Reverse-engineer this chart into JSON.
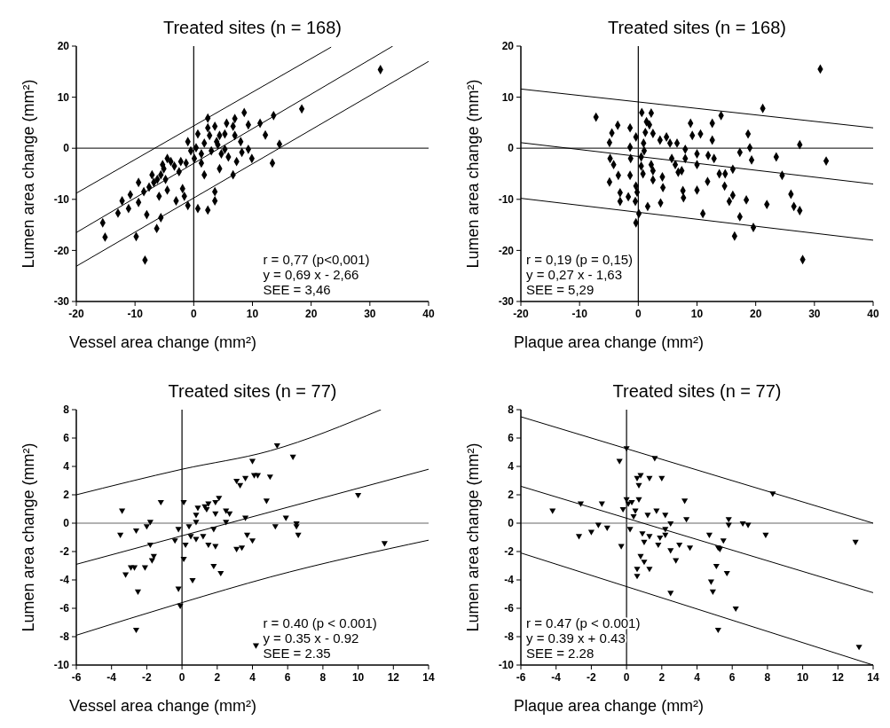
{
  "chart_data": [
    {
      "type": "scatter",
      "title": "Treated sites (n = 168)",
      "xlabel": "Vessel area change (mm²)",
      "ylabel": "Lumen area change (mm²)",
      "xlim": [
        -20,
        40
      ],
      "xticks": [
        -20,
        -10,
        0,
        10,
        20,
        30,
        40
      ],
      "ylim": [
        -30,
        20
      ],
      "yticks": [
        -30,
        -20,
        -10,
        0,
        10,
        20
      ],
      "ref_lines": [
        {
          "axis": "x",
          "value": 0,
          "color": "#000000"
        },
        {
          "axis": "y",
          "value": 0,
          "color": "#333333"
        }
      ],
      "annotations": [
        "r = 0,77 (p<0,001)",
        "y = 0,69 x - 2,66",
        "SEE = 3,46"
      ],
      "series": [
        {
          "color": "#000000",
          "marker": "diamond",
          "x": [
            31.8,
            18.4,
            13.6,
            14.6,
            13.4,
            12.2,
            11.3,
            9.3,
            8.6,
            8.0,
            7.0,
            5.6,
            5.3,
            3.6,
            2.4,
            2.7,
            1.8,
            4.1,
            5.9,
            8.2,
            9.3,
            9.9,
            7.3,
            6.7,
            4.4,
            1.8,
            1.3,
            0.1,
            -0.5,
            -1.0,
            0.7,
            3.6,
            3.6,
            2.4,
            0.7,
            -1.0,
            -1.6,
            -1.9,
            -2.5,
            -3.3,
            -3.9,
            -4.5,
            -5.1,
            -5.6,
            -6.2,
            -7.1,
            -4.5,
            -4.8,
            -3.0,
            -5.9,
            -5.6,
            -6.3,
            -8.0,
            -8.5,
            -9.4,
            -9.4,
            -10.8,
            -11.1,
            -12.2,
            -12.9,
            -15.5,
            -15.1,
            -9.8,
            -8.3,
            -7.6,
            -6.8,
            -5.3,
            -2.2,
            -1.3,
            3.0,
            3.9,
            4.7,
            5.3,
            7.0,
            6.7,
            2.4,
            1.3,
            0.4,
            4.4
          ],
          "values": [
            15.4,
            7.7,
            6.4,
            0.8,
            -2.9,
            2.6,
            4.9,
            4.6,
            7.0,
            1.3,
            2.5,
            4.9,
            2.8,
            4.3,
            5.9,
            2.5,
            1.0,
            0.7,
            -1.7,
            -0.8,
            -0.2,
            -2.0,
            -2.6,
            -5.2,
            -4.0,
            -5.2,
            -2.9,
            -2.0,
            -0.5,
            1.3,
            2.8,
            -8.5,
            -10.3,
            -12.1,
            -11.8,
            -11.2,
            -9.4,
            -7.9,
            -4.6,
            -3.5,
            -2.6,
            -2.0,
            -4.0,
            -5.2,
            -6.1,
            -5.2,
            -8.2,
            -6.1,
            -10.3,
            -9.4,
            -13.6,
            -15.7,
            -13.0,
            -8.5,
            -6.7,
            -10.6,
            -9.1,
            -11.8,
            -10.3,
            -12.7,
            -14.6,
            -17.4,
            -17.3,
            -21.9,
            -7.6,
            -6.7,
            -3.2,
            -2.6,
            -2.9,
            -0.5,
            1.3,
            -1.1,
            -0.2,
            5.8,
            4.3,
            4.0,
            -1.1,
            0.1,
            2.5
          ]
        },
        {
          "type": "line",
          "color": "#000000",
          "x": [
            -20,
            23.4
          ],
          "values": [
            -8.8,
            19.8
          ]
        },
        {
          "type": "line",
          "color": "#000000",
          "x": [
            -20,
            33.9
          ],
          "values": [
            -16.5,
            20
          ]
        },
        {
          "type": "line",
          "color": "#000000",
          "x": [
            -20,
            40
          ],
          "values": [
            -23.1,
            17
          ]
        }
      ]
    },
    {
      "type": "scatter",
      "title": "Treated sites (n = 168)",
      "xlabel": "Plaque area change (mm²)",
      "ylabel": "Lumen area change (mm²)",
      "xlim": [
        -20,
        40
      ],
      "xticks": [
        -20,
        -10,
        0,
        10,
        20,
        30,
        40
      ],
      "ylim": [
        -30,
        20
      ],
      "yticks": [
        -30,
        -20,
        -10,
        0,
        10,
        20
      ],
      "ref_lines": [
        {
          "axis": "x",
          "value": 0,
          "color": "#000000"
        },
        {
          "axis": "y",
          "value": 0,
          "color": "#333333"
        }
      ],
      "annotations": [
        "r = 0,19 (p = 0,15)",
        "y = 0,27 x - 1,63",
        "SEE = 5,29"
      ],
      "series": [
        {
          "color": "#000000",
          "marker": "diamond",
          "x": [
            -7.2,
            -3.5,
            -4.5,
            -4.9,
            -4.8,
            -4.2,
            -3.4,
            -4.9,
            -3.1,
            -3.1,
            -1.7,
            -1.4,
            -0.4,
            -1.4,
            -1.3,
            -1.4,
            -0.4,
            -0.2,
            -0.5,
            0.1,
            -0.4,
            0.6,
            2.2,
            1.4,
            1.9,
            1.2,
            2.5,
            0.9,
            1.0,
            0.5,
            0.5,
            0.8,
            2.2,
            2.5,
            2.5,
            4.1,
            4.2,
            3.8,
            1.6,
            3.7,
            4.8,
            5.4,
            6.6,
            5.7,
            6.3,
            6.8,
            7.4,
            7.6,
            7.7,
            8.0,
            8.0,
            8.9,
            9.2,
            10.6,
            10.0,
            10.0,
            10.0,
            11.0,
            11.8,
            12.6,
            12.6,
            11.9,
            12.9,
            13.8,
            14.8,
            14.7,
            14.1,
            15.5,
            16.1,
            16.1,
            17.3,
            17.3,
            16.4,
            18.4,
            19.3,
            19.0,
            18.7,
            19.6,
            21.2,
            21.9,
            23.5,
            31,
            32,
            27.5,
            28,
            26.5,
            27.5,
            24.5,
            26
          ],
          "values": [
            6.1,
            4.5,
            3.0,
            1.1,
            -2.0,
            -3.2,
            -5.3,
            -6.6,
            -8.7,
            -10.4,
            -9.5,
            4.0,
            2.2,
            0.2,
            -2.0,
            -5.3,
            -7.4,
            -8.6,
            -10.4,
            -12.8,
            -14.6,
            7.0,
            6.9,
            5.2,
            4.6,
            3.1,
            2.9,
            1.0,
            -0.5,
            -1.7,
            -3.5,
            -5.0,
            -3.2,
            -4.4,
            -6.2,
            -5.6,
            -7.7,
            -10.7,
            -11.4,
            1.6,
            2.2,
            1.0,
            1.0,
            -2.0,
            -3.2,
            -4.7,
            -4.4,
            -8.3,
            -9.7,
            -2.0,
            -0.2,
            4.9,
            2.5,
            2.8,
            -1.1,
            -3.2,
            -8.2,
            -12.8,
            -6.5,
            4.9,
            1.6,
            -1.4,
            -2.0,
            -5.0,
            -5.0,
            -7.4,
            6.4,
            -10.4,
            -9.2,
            -4.1,
            -0.8,
            -13.4,
            -17.2,
            -10.1,
            -2.3,
            0.1,
            2.8,
            -15.5,
            7.8,
            -11.0,
            -1.7,
            15.5,
            -2.5,
            0.7,
            -21.8,
            -11.4,
            -12.2,
            -5.3,
            -9
          ]
        },
        {
          "type": "line",
          "color": "#000000",
          "x": [
            -20,
            40
          ],
          "values": [
            11.6,
            4
          ]
        },
        {
          "type": "line",
          "color": "#000000",
          "x": [
            -20,
            40
          ],
          "values": [
            1.1,
            -7
          ]
        },
        {
          "type": "line",
          "color": "#000000",
          "x": [
            -20,
            40
          ],
          "values": [
            -9.8,
            -18
          ]
        }
      ]
    },
    {
      "type": "scatter",
      "title": "Treated sites (n = 77)",
      "xlabel": "Vessel area change (mm²)",
      "ylabel": "Lumen area change (mm²)",
      "xlim": [
        -6,
        14
      ],
      "xticks": [
        -6,
        -4,
        -2,
        0,
        2,
        4,
        6,
        8,
        10,
        12,
        14
      ],
      "ylim": [
        -10,
        8
      ],
      "yticks": [
        -10,
        -8,
        -6,
        -4,
        -2,
        0,
        2,
        4,
        6,
        8
      ],
      "ref_lines": [
        {
          "axis": "x",
          "value": 0,
          "color": "#000000"
        },
        {
          "axis": "y",
          "value": 0,
          "color": "#666666"
        }
      ],
      "annotations": [
        "r = 0.40 (p < 0.001)",
        "y = 0.35 x - 0.92",
        "SEE = 2.35"
      ],
      "series": [
        {
          "color": "#000000",
          "marker": "triangle",
          "x": [
            -3.4,
            -3.5,
            -2.6,
            -2.0,
            -1.8,
            -1.2,
            -1.8,
            -1.6,
            -1.7,
            -3.2,
            -2.9,
            -2.7,
            -2.1,
            -2.5,
            -2.6,
            -0.4,
            -0.2,
            -0.2,
            -0.1,
            0.1,
            0.1,
            0.2,
            0.4,
            0.5,
            0.6,
            0.8,
            0.8,
            0.9,
            0.8,
            1.2,
            1.3,
            1.4,
            1.5,
            1.5,
            1.9,
            1.9,
            1.9,
            2.1,
            1.8,
            2.2,
            2.5,
            2.7,
            2.5,
            1.8,
            3.1,
            3.3,
            3.6,
            4.1,
            4.3,
            5.0,
            4.0,
            4.8,
            3.6,
            3.7,
            4.0,
            3.1,
            3.4,
            5.3,
            5.4,
            5.9,
            6.3,
            6.5,
            6.6,
            6.5,
            10.0,
            11.5,
            4.2
          ],
          "values": [
            0.9,
            -0.8,
            -0.5,
            -0.2,
            0.1,
            1.5,
            -1.5,
            -2.3,
            -2.6,
            -3.6,
            -3.1,
            -3.1,
            -3.1,
            -4.8,
            -7.5,
            -1.2,
            -0.4,
            -4.6,
            -5.8,
            -2.5,
            1.5,
            -1.5,
            -0.2,
            -0.9,
            -4.0,
            -1.1,
            0.6,
            1.1,
            0.1,
            -0.9,
            1.2,
            1.0,
            1.4,
            -1.5,
            -1.6,
            0.7,
            1.5,
            1.8,
            -3.0,
            -3.5,
            0.9,
            0.7,
            0.1,
            -0.4,
            3.0,
            2.7,
            3.2,
            3.4,
            3.4,
            3.3,
            4.4,
            1.6,
            0.4,
            -0.8,
            -1.2,
            -1.8,
            -1.7,
            -0.2,
            5.5,
            0.4,
            4.7,
            0.0,
            -0.8,
            -0.2,
            2.0,
            -1.4,
            -8.6
          ]
        },
        {
          "type": "line",
          "color": "#000000",
          "x": [
            -6,
            0,
            5,
            11.3
          ],
          "values": [
            2.0,
            3.8,
            5.1,
            8.0
          ]
        },
        {
          "type": "line",
          "color": "#000000",
          "x": [
            -6,
            14
          ],
          "values": [
            -2.9,
            3.8
          ]
        },
        {
          "type": "line",
          "color": "#000000",
          "x": [
            -6,
            0,
            5,
            14
          ],
          "values": [
            -7.9,
            -5.6,
            -3.8,
            -1.2
          ]
        }
      ]
    },
    {
      "type": "scatter",
      "title": "Treated sites (n = 77)",
      "xlabel": "Plaque area change (mm²)",
      "ylabel": "Lumen area change (mm²)",
      "xlim": [
        -6,
        14
      ],
      "xticks": [
        -6,
        -4,
        -2,
        0,
        2,
        4,
        6,
        8,
        10,
        12,
        14
      ],
      "ylim": [
        -10,
        8
      ],
      "yticks": [
        -10,
        -8,
        -6,
        -4,
        -2,
        0,
        2,
        4,
        6,
        8
      ],
      "ref_lines": [
        {
          "axis": "x",
          "value": 0,
          "color": "#000000"
        },
        {
          "axis": "y",
          "value": 0,
          "color": "#666666"
        }
      ],
      "annotations": [
        "r = 0.47 (p < 0.001)",
        "y = 0.39 x + 0.43",
        "SEE = 2.28"
      ],
      "series": [
        {
          "color": "#000000",
          "marker": "triangle",
          "x": [
            -4.2,
            -2.7,
            -2.6,
            -2.0,
            -1.6,
            -1.4,
            -1.1,
            -0.4,
            -0.3,
            -0.2,
            0.0,
            0.2,
            0.0,
            0.1,
            0.3,
            0.6,
            0.7,
            0.8,
            0.7,
            0.5,
            0.4,
            0.9,
            1.0,
            0.8,
            1.0,
            0.6,
            0.6,
            1.3,
            1.3,
            1.2,
            1.7,
            1.3,
            2.0,
            1.6,
            1.8,
            1.9,
            2.2,
            2.2,
            2.2,
            2.5,
            2.5,
            2.8,
            3.0,
            3.3,
            3.4,
            3.6,
            2.5,
            4.7,
            4.8,
            4.9,
            5.2,
            5.3,
            5.5,
            5.1,
            5.7,
            5.8,
            5.8,
            6.6,
            6.9,
            6.2,
            7.9,
            8.3,
            5.2,
            13,
            13.2
          ],
          "values": [
            0.9,
            -0.9,
            1.4,
            -0.6,
            -0.1,
            1.4,
            -0.3,
            4.4,
            -1.6,
            1.0,
            5.3,
            -0.4,
            1.7,
            1.4,
            1.5,
            3.2,
            2.7,
            3.4,
            1.7,
            0.9,
            0.5,
            -0.7,
            -1.3,
            -2.3,
            -2.7,
            -3.2,
            -3.7,
            -3.2,
            -0.9,
            0.6,
            0.9,
            3.2,
            3.2,
            4.6,
            -1.5,
            -1.0,
            -0.8,
            0.6,
            -0.4,
            0.0,
            -1.9,
            -2.6,
            -1.5,
            1.6,
            0.3,
            -1.7,
            -4.9,
            -0.8,
            -4.1,
            -4.8,
            -1.7,
            -1.8,
            -1.2,
            -3.0,
            -3.5,
            0.3,
            -0.1,
            0.0,
            -0.1,
            -6.0,
            -0.8,
            2.1,
            -7.5,
            -1.3,
            -8.7
          ]
        },
        {
          "type": "line",
          "color": "#000000",
          "x": [
            -6,
            14
          ],
          "values": [
            7.5,
            0
          ]
        },
        {
          "type": "line",
          "color": "#000000",
          "x": [
            -6,
            14
          ],
          "values": [
            2.6,
            -4.9
          ]
        },
        {
          "type": "line",
          "color": "#000000",
          "x": [
            -6,
            14
          ],
          "values": [
            -2.1,
            -10
          ]
        }
      ]
    }
  ]
}
